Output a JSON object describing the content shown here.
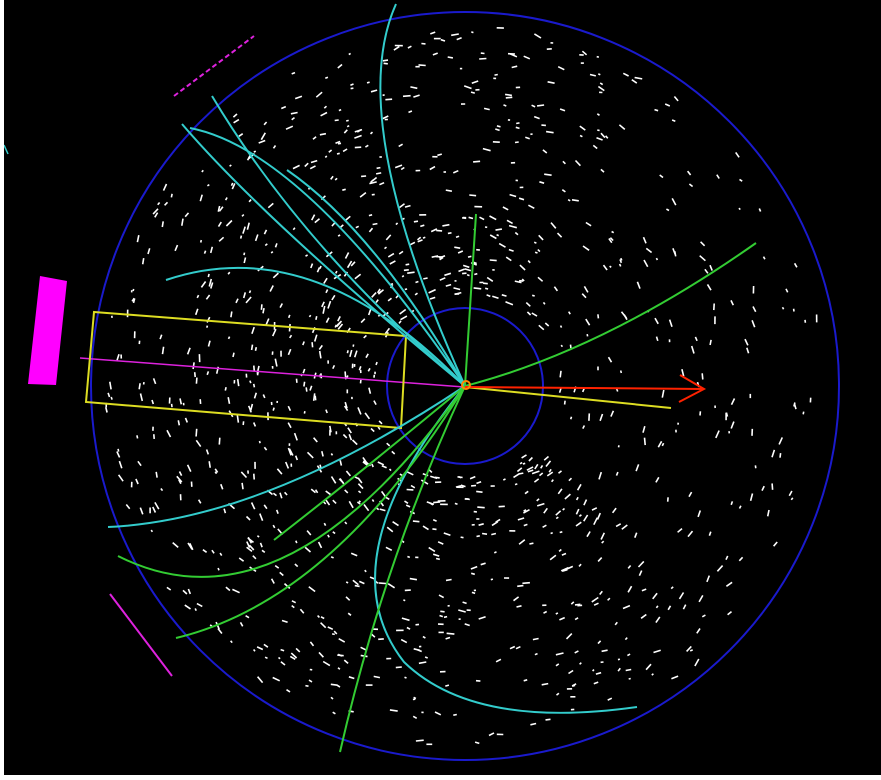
{
  "colors": {
    "background": "#000000",
    "frame": "#ffffff",
    "detector_outline": "#1a1acc",
    "hits": "#ffffff",
    "charged_tracks": "#33cccc",
    "tracks_green": "#33cc33",
    "jet_box": "#dddd22",
    "lepton_line": "#dd22dd",
    "calorimeter_block": "#ff00ff",
    "missing_energy_arrow": "#ff2200",
    "missing_energy_line": "#dddd22"
  },
  "icons": {
    "vertex": "vertex-marker-icon",
    "arrow": "arrowhead-icon"
  }
}
